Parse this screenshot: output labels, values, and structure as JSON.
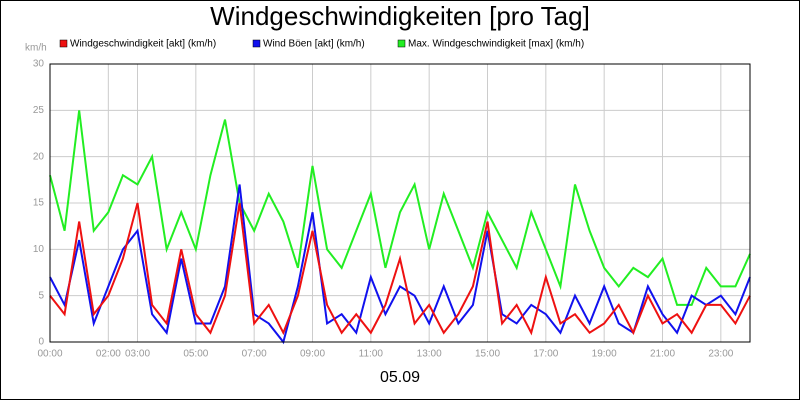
{
  "chart_data": {
    "type": "line",
    "title": "Windgeschwindigkeiten [pro Tag]",
    "y_unit": "km/h",
    "xlabel": "05.09",
    "x": [
      0,
      0.5,
      1,
      1.5,
      2,
      2.5,
      3,
      3.5,
      4,
      4.5,
      5,
      5.5,
      6,
      6.5,
      7,
      7.5,
      8,
      8.5,
      9,
      9.5,
      10,
      10.5,
      11,
      11.5,
      12,
      12.5,
      13,
      13.5,
      14,
      14.5,
      15,
      15.5,
      16,
      16.5,
      17,
      17.5,
      18,
      18.5,
      19,
      19.5,
      20,
      20.5,
      21,
      21.5,
      22,
      22.5,
      23,
      23.5,
      24
    ],
    "series": [
      {
        "name": "Windgeschwindigkeit [akt] (km/h)",
        "color": "#ee1111",
        "values": [
          5,
          3,
          13,
          3,
          5,
          9,
          15,
          4,
          2,
          10,
          3,
          1,
          5,
          15,
          2,
          4,
          1,
          5,
          12,
          4,
          1,
          3,
          1,
          4,
          9,
          2,
          4,
          1,
          3,
          6,
          13,
          2,
          4,
          1,
          7,
          2,
          3,
          1,
          2,
          4,
          1,
          5,
          2,
          3,
          1,
          4,
          4,
          2,
          5
        ]
      },
      {
        "name": "Wind Böen [akt] (km/h)",
        "color": "#1111ee",
        "values": [
          7,
          4,
          11,
          2,
          6,
          10,
          12,
          3,
          1,
          9,
          2,
          2,
          6,
          17,
          3,
          2,
          0,
          6,
          14,
          2,
          3,
          1,
          7,
          3,
          6,
          5,
          2,
          6,
          2,
          4,
          12,
          3,
          2,
          4,
          3,
          1,
          5,
          2,
          6,
          2,
          1,
          6,
          3,
          1,
          5,
          4,
          5,
          3,
          7
        ]
      },
      {
        "name": "Max. Windgeschwindigkeit [max] (km/h)",
        "color": "#22ee22",
        "values": [
          18,
          12,
          25,
          12,
          14,
          18,
          17,
          20,
          10,
          14,
          10,
          18,
          24,
          15,
          12,
          16,
          13,
          8,
          19,
          10,
          8,
          12,
          16,
          8,
          14,
          17,
          10,
          16,
          12,
          8,
          14,
          11,
          8,
          14,
          10,
          6,
          17,
          12,
          8,
          6,
          8,
          7,
          9,
          4,
          4,
          8,
          6,
          6,
          9.5
        ]
      }
    ],
    "xlim": [
      0,
      24
    ],
    "xticks": [
      {
        "value": 0,
        "label": "00:00"
      },
      {
        "value": 2,
        "label": "02:00"
      },
      {
        "value": 3,
        "label": "03:00"
      },
      {
        "value": 5,
        "label": "05:00"
      },
      {
        "value": 7,
        "label": "07:00"
      },
      {
        "value": 9,
        "label": "09:00"
      },
      {
        "value": 11,
        "label": "11:00"
      },
      {
        "value": 13,
        "label": "13:00"
      },
      {
        "value": 15,
        "label": "15:00"
      },
      {
        "value": 17,
        "label": "17:00"
      },
      {
        "value": 19,
        "label": "19:00"
      },
      {
        "value": 21,
        "label": "21:00"
      },
      {
        "value": 23,
        "label": "23:00"
      }
    ],
    "ylim": [
      0,
      30
    ],
    "yticks": [
      0,
      5,
      10,
      15,
      20,
      25,
      30
    ],
    "grid": true
  }
}
